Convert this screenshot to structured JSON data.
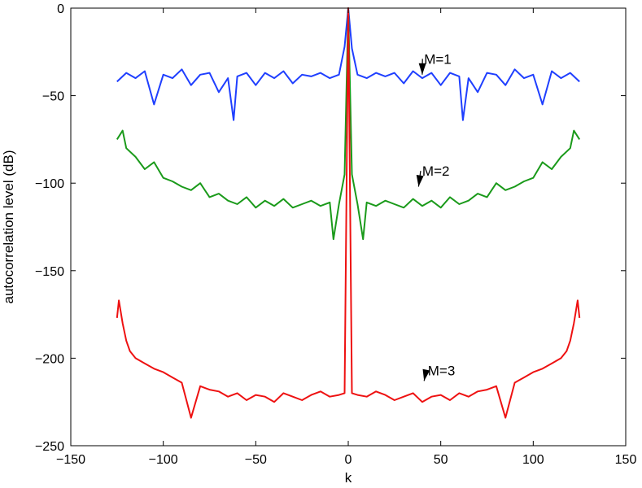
{
  "chart_data": {
    "type": "line",
    "title": "",
    "xlabel": "k",
    "ylabel": "autocorrelation level (dB)",
    "xlim": [
      -150,
      150
    ],
    "ylim": [
      -250,
      0
    ],
    "xticks": [
      -150,
      -100,
      -50,
      0,
      50,
      100,
      150
    ],
    "yticks": [
      0,
      -50,
      -100,
      -150,
      -200,
      -250
    ],
    "xtick_labels": [
      "−150",
      "−100",
      "−50",
      "0",
      "50",
      "100",
      "150"
    ],
    "ytick_labels": [
      "0",
      "−50",
      "−100",
      "−150",
      "−200",
      "−250"
    ],
    "grid": false,
    "legend": "none",
    "series": [
      {
        "color": "#1f3fff",
        "x": [
          -125,
          -120,
          -115,
          -110,
          -105,
          -100,
          -95,
          -90,
          -85,
          -80,
          -75,
          -70,
          -65,
          -62,
          -60,
          -55,
          -50,
          -45,
          -40,
          -35,
          -30,
          -25,
          -20,
          -15,
          -10,
          -5,
          -2,
          0,
          2,
          5,
          10,
          15,
          20,
          25,
          30,
          35,
          40,
          45,
          50,
          55,
          60,
          62,
          65,
          70,
          75,
          80,
          85,
          90,
          95,
          100,
          105,
          110,
          115,
          120,
          125
        ],
        "y": [
          -42,
          -37,
          -40,
          -36,
          -55,
          -38,
          -40,
          -35,
          -44,
          -38,
          -37,
          -48,
          -40,
          -64,
          -39,
          -37,
          -44,
          -37,
          -40,
          -36,
          -43,
          -38,
          -39,
          -37,
          -40,
          -38,
          -22,
          0,
          -23,
          -38,
          -40,
          -37,
          -39,
          -37,
          -43,
          -36,
          -40,
          -37,
          -44,
          -37,
          -39,
          -64,
          -40,
          -48,
          -37,
          -38,
          -44,
          -35,
          -40,
          -38,
          -55,
          -36,
          -40,
          -37,
          -42
        ]
      },
      {
        "color": "#1a9a1a",
        "x": [
          -125,
          -122,
          -120,
          -115,
          -110,
          -105,
          -100,
          -95,
          -90,
          -85,
          -80,
          -75,
          -70,
          -65,
          -60,
          -55,
          -50,
          -45,
          -40,
          -35,
          -30,
          -25,
          -20,
          -15,
          -10,
          -8,
          -5,
          -2,
          0,
          2,
          5,
          8,
          10,
          15,
          20,
          25,
          30,
          35,
          40,
          45,
          50,
          55,
          60,
          65,
          70,
          75,
          80,
          85,
          90,
          95,
          100,
          105,
          110,
          115,
          120,
          122,
          125
        ],
        "y": [
          -75,
          -70,
          -80,
          -85,
          -92,
          -88,
          -97,
          -99,
          -102,
          -104,
          -100,
          -108,
          -106,
          -110,
          -112,
          -108,
          -114,
          -110,
          -113,
          -109,
          -114,
          -112,
          -110,
          -113,
          -111,
          -132,
          -112,
          -95,
          0,
          -95,
          -112,
          -132,
          -111,
          -113,
          -110,
          -112,
          -114,
          -109,
          -113,
          -110,
          -114,
          -108,
          -112,
          -110,
          -106,
          -108,
          -100,
          -104,
          -102,
          -99,
          -97,
          -88,
          -92,
          -85,
          -80,
          -70,
          -75
        ]
      },
      {
        "color": "#ee1111",
        "x": [
          -125,
          -124,
          -122,
          -120,
          -118,
          -115,
          -110,
          -105,
          -100,
          -95,
          -90,
          -85,
          -80,
          -75,
          -70,
          -65,
          -60,
          -55,
          -50,
          -45,
          -40,
          -35,
          -30,
          -25,
          -20,
          -15,
          -10,
          -5,
          -2,
          0,
          2,
          5,
          10,
          15,
          20,
          25,
          30,
          35,
          40,
          45,
          50,
          55,
          60,
          65,
          70,
          75,
          80,
          85,
          90,
          95,
          100,
          105,
          110,
          115,
          118,
          120,
          122,
          124,
          125
        ],
        "y": [
          -177,
          -167,
          -180,
          -190,
          -196,
          -200,
          -203,
          -206,
          -208,
          -211,
          -214,
          -234,
          -216,
          -218,
          -219,
          -222,
          -220,
          -224,
          -221,
          -222,
          -225,
          -220,
          -222,
          -224,
          -221,
          -219,
          -222,
          -221,
          -220,
          0,
          -220,
          -221,
          -222,
          -219,
          -221,
          -224,
          -222,
          -220,
          -225,
          -222,
          -221,
          -224,
          -220,
          -222,
          -219,
          -218,
          -216,
          -234,
          -214,
          -211,
          -208,
          -206,
          -203,
          -200,
          -196,
          -190,
          -180,
          -167,
          -177
        ]
      }
    ],
    "annotations": [
      {
        "text": "M=1",
        "x": 41,
        "y": -29,
        "arrow_to": [
          40,
          -38
        ]
      },
      {
        "text": "M=2",
        "x": 40,
        "y": -93,
        "arrow_to": [
          38,
          -102
        ]
      },
      {
        "text": "M=3",
        "x": 43,
        "y": -207,
        "arrow_to": [
          41,
          -213
        ]
      }
    ]
  }
}
